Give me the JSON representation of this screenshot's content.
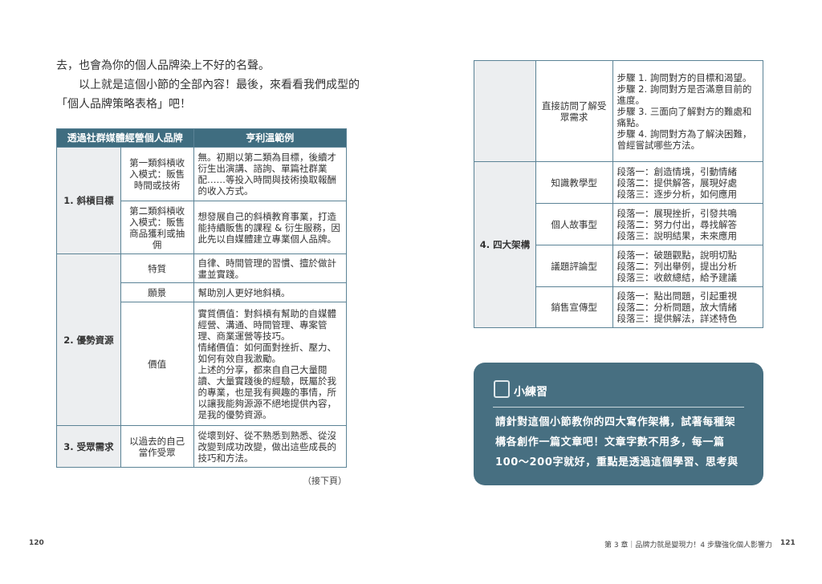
{
  "left_page": {
    "paragraphs": [
      "去，也會為你的個人品牌染上不好的名聲。",
      "　　以上就是這個小節的全部內容！最後，來看看我們成型的",
      "「個人品牌策略表格」吧！"
    ],
    "table": {
      "headers": [
        "透過社群媒體經營個人品牌",
        "亨利溫範例"
      ],
      "rows": [
        {
          "category": "1. 斜槓目標",
          "item": "第一類斜槓收入模式：販售時間或技術",
          "example": "無。初期以第二類為目標，後續才衍生出演講、諮詢、單篇社群業配……等投入時間與技術換取報酬的收入方式。"
        },
        {
          "item": "第二類斜槓收入模式：販售商品獲利或抽佣",
          "example": "想發展自己的斜槓教育事業，打造能持續販售的課程 & 衍生服務，因此先以自媒體建立專業個人品牌。"
        },
        {
          "category": "2. 優勢資源",
          "item": "特質",
          "example": "自律、時間管理的習慣、擅於做計畫並實踐。"
        },
        {
          "item": "願景",
          "example": "幫助別人更好地斜槓。"
        },
        {
          "item": "價值",
          "example": "實質價值：對斜槓有幫助的自媒體經營、溝通、時間管理、專案管理、商業運營等技巧。\n情緒價值：如何面對挫折、壓力、如何有效自我激勵。\n上述的分享，都來自自己大量閱讀、大量實踐後的經驗，既屬於我的專業，也是我有興趣的事情，所以讓我能夠源源不絕地提供內容，是我的優勢資源。"
        },
        {
          "category": "3. 受眾需求",
          "item": "以過去的自己當作受眾",
          "example": "從壞到好、從不熟悉到熟悉、從沒改變到成功改變，做出這些成長的技巧和方法。"
        }
      ]
    },
    "continued": "（接下頁）",
    "page_number": "120"
  },
  "right_page": {
    "table": {
      "rows": [
        {
          "item": "直接訪問了解受眾需求",
          "example": "步驟 1. 詢問對方的目標和渴望。\n步驟 2. 詢問對方是否滿意目前的進度。\n步驟 3. 三面向了解對方的難處和痛點。\n步驟 4. 詢問對方為了解決困難，曾經嘗試哪些方法。"
        },
        {
          "category": "4. 四大架構",
          "item": "知識教學型",
          "example": "段落一：創造情境，引動情緒\n段落二：提供解答，展現好處\n段落三：逐步分析，如何應用"
        },
        {
          "item": "個人故事型",
          "example": "段落一：展現挫折，引發共鳴\n段落二：努力付出，尋找解答\n段落三：說明結果，未來應用"
        },
        {
          "item": "議題評論型",
          "example": "段落一：破題觀點，說明切點\n段落二：列出舉例，提出分析\n段落三：收斂總結，給予建議"
        },
        {
          "item": "銷售宣傳型",
          "example": "段落一：點出問題，引起重視\n段落二：分析問題，放大情緒\n段落三：提供解法，詳述特色"
        }
      ]
    },
    "exercise": {
      "icon": "checklist-pen-icon",
      "title": "小練習",
      "text": "請針對這個小節教你的四大寫作架構，試著每種架構各創作一篇文章吧！文章字數不用多，每一篇100～200字就好，重點是透過這個學習、思考與"
    },
    "footer": "第 3 章｜品牌力就是變現力！4 步驟強化個人影響力",
    "page_number": "121"
  },
  "colors": {
    "header": "#3f6d80",
    "border": "#5b8396",
    "exercise_box": "#476f81",
    "category_bg": "#eceef0"
  }
}
